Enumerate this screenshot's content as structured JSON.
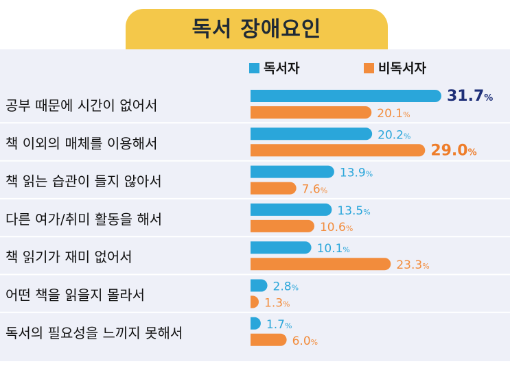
{
  "title": "독서 장애요인",
  "chart_data": {
    "type": "bar",
    "orientation": "horizontal",
    "title": "독서 장애요인",
    "categories": [
      "공부 때문에 시간이 없어서",
      "책 이외의 매체를 이용해서",
      "책 읽는 습관이 들지 않아서",
      "다른 여가/취미 활동을 해서",
      "책 읽기가 재미 없어서",
      "어떤 책을 읽을지 몰라서",
      "독서의 필요성을 느끼지 못해서"
    ],
    "series": [
      {
        "name": "독서자",
        "color": "#2aa6da",
        "highlight_color": "#1e2f78",
        "values": [
          31.7,
          20.2,
          13.9,
          13.5,
          10.1,
          2.8,
          1.7
        ],
        "labels": [
          "31.7",
          "20.2",
          "13.9",
          "13.5",
          "10.1",
          "2.8",
          "1.7"
        ]
      },
      {
        "name": "비독서자",
        "color": "#f28c3c",
        "highlight_color": "#ee7d2a",
        "values": [
          20.1,
          29.0,
          7.6,
          10.6,
          23.3,
          1.3,
          6.0
        ],
        "labels": [
          "20.1",
          "29.0",
          "7.6",
          "10.6",
          "23.3",
          "1.3",
          "6.0"
        ]
      }
    ],
    "unit": "%",
    "highlight_max": true,
    "xlim": [
      0,
      31.7
    ]
  }
}
